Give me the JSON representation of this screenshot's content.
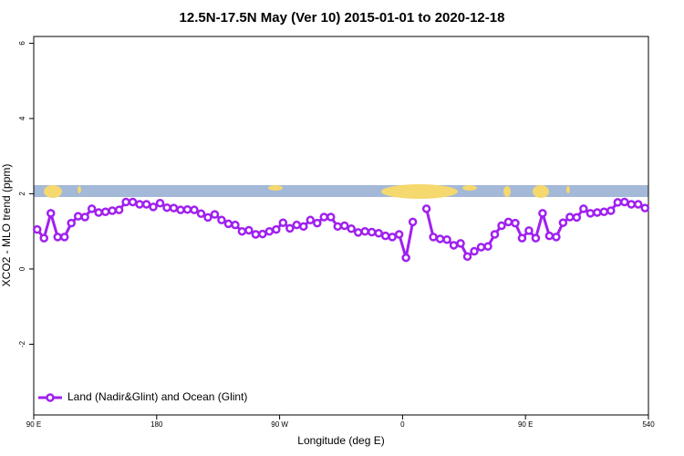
{
  "chart_data": {
    "type": "line",
    "title": "12.5N-17.5N May (Ver 10)   2015-01-01 to 2020-12-18",
    "x_label": "Longitude (deg E)",
    "y_label": "XCO2 - MLO trend (ppm)",
    "x": [
      92.5,
      97.5,
      102.5,
      107.5,
      112.5,
      117.5,
      122.5,
      127.5,
      132.5,
      137.5,
      142.5,
      147.5,
      152.5,
      157.5,
      162.5,
      167.5,
      172.5,
      177.5,
      182.5,
      187.5,
      192.5,
      197.5,
      202.5,
      207.5,
      212.5,
      217.5,
      222.5,
      227.5,
      232.5,
      237.5,
      242.5,
      247.5,
      252.5,
      257.5,
      262.5,
      267.5,
      272.5,
      277.5,
      282.5,
      287.5,
      292.5,
      297.5,
      302.5,
      307.5,
      312.5,
      317.5,
      322.5,
      327.5,
      332.5,
      337.5,
      342.5,
      347.5,
      352.5,
      357.5,
      362.5,
      367.5,
      372.5,
      377.5,
      382.5,
      387.5,
      392.5,
      397.5,
      402.5,
      407.5,
      412.5,
      417.5,
      422.5,
      427.5,
      432.5,
      437.5,
      442.5,
      447.5,
      452.5,
      457.5,
      462.5,
      467.5,
      472.5,
      477.5,
      482.5,
      487.5,
      492.5,
      497.5,
      502.5,
      507.5,
      512.5,
      517.5,
      522.5,
      527.5,
      532.5,
      537.5
    ],
    "series": [
      {
        "name": "Land (Nadir&Glint) and Ocean (Glint)",
        "color": "#a020f0",
        "values": [
          1.05,
          0.82,
          1.48,
          0.85,
          0.85,
          1.22,
          1.4,
          1.38,
          1.6,
          1.5,
          1.52,
          1.55,
          1.57,
          1.78,
          1.78,
          1.72,
          1.72,
          1.65,
          1.75,
          1.63,
          1.62,
          1.57,
          1.58,
          1.57,
          1.47,
          1.37,
          1.45,
          1.3,
          1.2,
          1.17,
          1.0,
          1.03,
          0.92,
          0.93,
          1.0,
          1.05,
          1.23,
          1.08,
          1.17,
          1.13,
          1.3,
          1.22,
          1.38,
          1.38,
          1.13,
          1.15,
          1.07,
          0.97,
          1.0,
          0.98,
          0.95,
          0.88,
          0.85,
          0.92,
          0.3,
          1.25,
          null,
          1.6,
          0.85,
          0.8,
          0.78,
          0.63,
          0.68,
          0.33,
          0.47,
          0.58,
          0.6,
          0.92,
          1.15,
          1.25,
          1.22,
          0.82,
          1.02,
          0.82,
          1.48,
          0.88,
          0.85,
          1.23,
          1.38,
          1.37,
          1.6,
          1.48,
          1.5,
          1.52,
          1.55,
          1.77,
          1.78,
          1.72,
          1.72,
          1.62
        ]
      }
    ],
    "xlim": [
      90,
      540
    ],
    "xticks": [
      {
        "value": 90,
        "label": "90 E"
      },
      180,
      {
        "value": 270,
        "label": "90 W"
      },
      {
        "value": 360,
        "label": "0"
      },
      {
        "value": 450,
        "label": "90 E"
      },
      540
    ],
    "ylim": [
      -3.88,
      6.18
    ],
    "yticks": [
      -2,
      0,
      2,
      4,
      6
    ],
    "legend": "bottom-left"
  }
}
